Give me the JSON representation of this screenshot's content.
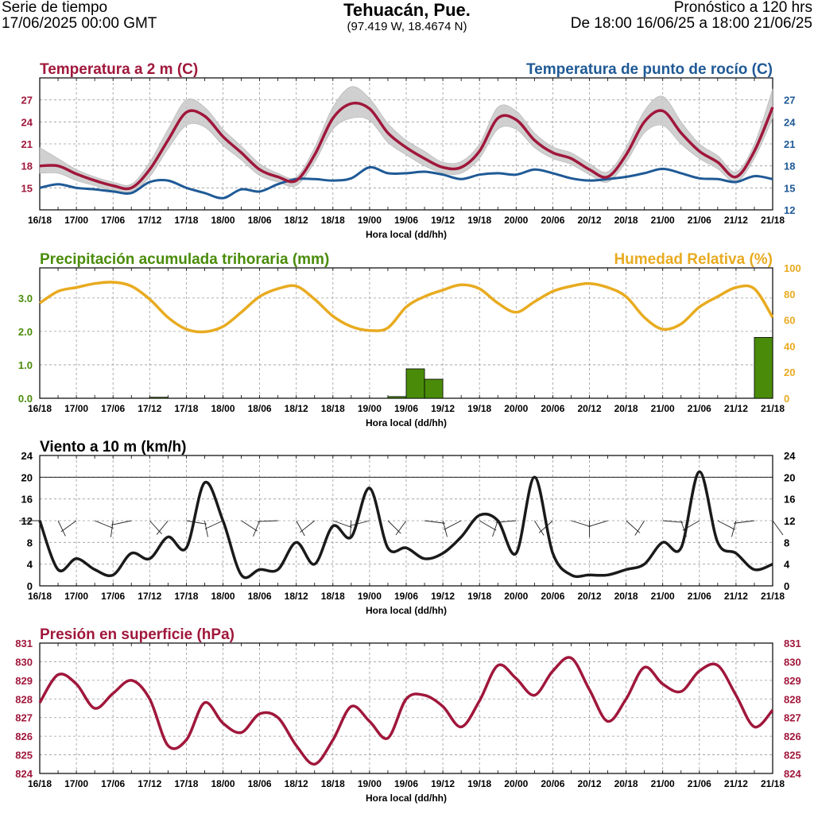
{
  "header": {
    "left_line1": "Serie de tiempo",
    "left_line2": "17/06/2025 00:00 GMT",
    "title": "Tehuacán, Pue.",
    "coords": "(97.419 W, 18.4674 N)",
    "right_line1": "Pronóstico a 120 hrs",
    "right_line2": "De 18:00 16/06/25 a 18:00 21/06/25"
  },
  "colors": {
    "temperature": "#a0173b",
    "dewpoint": "#1f5a96",
    "precip": "#4a8c0a",
    "humidity": "#e8ab20",
    "wind": "#1a1a1a",
    "pressure": "#a0173b",
    "spread": "#c8c8c8"
  },
  "chart_data": [
    {
      "id": "temp",
      "type": "line",
      "title": "Temperatura a 2 m (C)",
      "title_right": "Temperatura de punto de rocío (C)",
      "xlabel": "Hora local (dd/hh)",
      "x_tick_labels": [
        "16/18",
        "17/00",
        "17/06",
        "17/12",
        "17/18",
        "18/00",
        "18/06",
        "18/12",
        "18/18",
        "19/00",
        "19/06",
        "19/12",
        "19/18",
        "20/00",
        "20/06",
        "20/12",
        "20/18",
        "21/00",
        "21/06",
        "21/12",
        "21/18"
      ],
      "ylim": [
        12,
        30
      ],
      "y_ticks_left": [
        "15",
        "18",
        "21",
        "24",
        "27"
      ],
      "y_ticks_right": [
        "12",
        "15",
        "18",
        "21",
        "24",
        "27"
      ],
      "hours": [
        0,
        3,
        6,
        9,
        12,
        15,
        18,
        21,
        24,
        27,
        30,
        33,
        36,
        39,
        42,
        45,
        48,
        51,
        54,
        57,
        60,
        63,
        66,
        69,
        72,
        75,
        78,
        81,
        84,
        87,
        90,
        93,
        96,
        99,
        102,
        105,
        108,
        111,
        114,
        117,
        120
      ],
      "series": [
        {
          "name": "Temperatura a 2 m (C)",
          "values": [
            18.0,
            18.0,
            16.9,
            16.0,
            15.3,
            15.0,
            17.5,
            21.5,
            25.3,
            24.8,
            22.0,
            19.8,
            17.5,
            16.5,
            16.0,
            19.5,
            24.5,
            26.5,
            25.8,
            22.5,
            20.5,
            19.0,
            17.8,
            17.8,
            20.0,
            24.5,
            24.3,
            21.5,
            19.8,
            19.0,
            17.5,
            16.5,
            19.5,
            24.0,
            25.5,
            22.5,
            20.0,
            18.5,
            16.5,
            20.0,
            26.0
          ]
        },
        {
          "name": "Temperatura de punto de rocío (C)",
          "values": [
            15.0,
            15.5,
            15.0,
            14.8,
            14.5,
            14.3,
            15.8,
            16.0,
            15.0,
            14.3,
            13.6,
            14.8,
            14.5,
            15.5,
            16.2,
            16.2,
            16.0,
            16.3,
            17.8,
            17.0,
            17.0,
            17.2,
            16.8,
            16.2,
            16.8,
            17.0,
            16.8,
            17.5,
            17.0,
            16.3,
            16.0,
            16.2,
            16.5,
            17.0,
            17.6,
            17.0,
            16.3,
            16.2,
            15.8,
            16.6,
            16.2
          ]
        }
      ],
      "spread": {
        "upper": [
          20.5,
          19.0,
          17.5,
          16.5,
          15.8,
          15.5,
          18.5,
          23.0,
          27.0,
          26.0,
          23.0,
          20.7,
          18.3,
          17.0,
          16.5,
          20.5,
          26.0,
          28.8,
          27.2,
          23.8,
          21.5,
          20.0,
          18.5,
          18.6,
          21.0,
          26.0,
          25.5,
          22.5,
          20.6,
          19.8,
          18.3,
          17.2,
          20.5,
          25.5,
          27.5,
          24.0,
          21.0,
          19.4,
          17.2,
          21.0,
          28.5
        ],
        "lower": [
          17.0,
          17.0,
          16.0,
          15.3,
          14.6,
          14.4,
          16.5,
          20.3,
          23.5,
          23.3,
          20.8,
          18.8,
          16.7,
          15.8,
          15.3,
          18.5,
          23.0,
          24.5,
          24.2,
          21.2,
          19.5,
          18.0,
          17.0,
          17.0,
          19.0,
          23.0,
          23.0,
          20.5,
          19.0,
          18.2,
          16.8,
          15.8,
          18.5,
          22.5,
          23.5,
          21.0,
          19.0,
          17.6,
          15.8,
          19.0,
          24.5
        ]
      }
    },
    {
      "id": "precip",
      "type": "bar",
      "title": "Precipitación acumulada trihoraria (mm)",
      "title_right": "Humedad Relativa (%)",
      "xlabel": "Hora local (dd/hh)",
      "x_tick_labels": [
        "16/18",
        "17/00",
        "17/06",
        "17/12",
        "17/18",
        "18/00",
        "18/06",
        "18/12",
        "18/18",
        "19/00",
        "19/06",
        "19/12",
        "19/18",
        "20/00",
        "20/06",
        "20/12",
        "20/18",
        "21/00",
        "21/06",
        "21/12",
        "21/18"
      ],
      "ylim": [
        0,
        3.9
      ],
      "y_ticks_left": [
        "0.0",
        "1.0",
        "2.0",
        "3.0"
      ],
      "y2lim": [
        0,
        100
      ],
      "y_ticks_right": [
        "0",
        "20",
        "40",
        "60",
        "80",
        "100"
      ],
      "bars": [
        {
          "hour": 19.5,
          "value": 0.03
        },
        {
          "hour": 58.5,
          "value": 0.05
        },
        {
          "hour": 61.5,
          "value": 0.88
        },
        {
          "hour": 64.5,
          "value": 0.57
        },
        {
          "hour": 118.5,
          "value": 1.82
        }
      ],
      "humidity": {
        "name": "Humedad Relativa (%)",
        "hours": [
          0,
          3,
          6,
          9,
          12,
          15,
          18,
          21,
          24,
          27,
          30,
          33,
          36,
          39,
          42,
          45,
          48,
          51,
          54,
          57,
          60,
          63,
          66,
          69,
          72,
          75,
          78,
          81,
          84,
          87,
          90,
          93,
          96,
          99,
          102,
          105,
          108,
          111,
          114,
          117,
          120
        ],
        "values": [
          73,
          82,
          85,
          88,
          89,
          86,
          76,
          62,
          53,
          51,
          55,
          66,
          78,
          84,
          86,
          76,
          63,
          55,
          52,
          54,
          70,
          78,
          83,
          87,
          84,
          73,
          66,
          74,
          82,
          86,
          88,
          85,
          78,
          62,
          53,
          57,
          70,
          78,
          85,
          84,
          62
        ]
      }
    },
    {
      "id": "wind",
      "type": "line",
      "title": "Viento a 10 m (km/h)",
      "xlabel": "Hora local (dd/hh)",
      "x_tick_labels": [
        "16/18",
        "17/00",
        "17/06",
        "17/12",
        "17/18",
        "18/00",
        "18/06",
        "18/12",
        "18/18",
        "19/00",
        "19/06",
        "19/12",
        "19/18",
        "20/00",
        "20/06",
        "20/12",
        "20/18",
        "21/00",
        "21/06",
        "21/12",
        "21/18"
      ],
      "ylim": [
        0,
        24
      ],
      "y_ticks_left": [
        "0",
        "4",
        "8",
        "12",
        "16",
        "20",
        "24"
      ],
      "y_ticks_right": [
        "0",
        "4",
        "8",
        "12",
        "16",
        "20",
        "24"
      ],
      "hours": [
        0,
        3,
        6,
        9,
        12,
        15,
        18,
        21,
        24,
        27,
        30,
        33,
        36,
        39,
        42,
        45,
        48,
        51,
        54,
        57,
        60,
        63,
        66,
        69,
        72,
        75,
        78,
        81,
        84,
        87,
        90,
        93,
        96,
        99,
        102,
        105,
        108,
        111,
        114,
        117,
        120
      ],
      "series": [
        {
          "name": "Viento a 10 m (km/h)",
          "values": [
            12,
            3,
            5,
            3,
            2,
            6,
            5,
            9,
            7,
            19,
            12,
            2,
            3,
            3,
            8,
            4,
            11,
            9,
            18,
            7,
            7,
            5,
            6,
            9,
            13,
            12,
            6,
            20,
            6,
            2,
            2,
            2,
            3,
            4,
            8,
            7,
            21,
            8,
            6,
            3,
            4
          ]
        }
      ]
    },
    {
      "id": "pres",
      "type": "line",
      "title": "Presión en superficie (hPa)",
      "xlabel": "Hora local (dd/hh)",
      "x_tick_labels": [
        "16/18",
        "17/00",
        "17/06",
        "17/12",
        "17/18",
        "18/00",
        "18/06",
        "18/12",
        "18/18",
        "19/00",
        "19/06",
        "19/12",
        "19/18",
        "20/00",
        "20/06",
        "20/12",
        "20/18",
        "21/00",
        "21/06",
        "21/12",
        "21/18"
      ],
      "ylim": [
        824,
        831
      ],
      "y_ticks_left": [
        "824",
        "825",
        "826",
        "827",
        "828",
        "829",
        "830",
        "831"
      ],
      "y_ticks_right": [
        "824",
        "825",
        "826",
        "827",
        "828",
        "829",
        "830",
        "831"
      ],
      "hours": [
        0,
        3,
        6,
        9,
        12,
        15,
        18,
        21,
        24,
        27,
        30,
        33,
        36,
        39,
        42,
        45,
        48,
        51,
        54,
        57,
        60,
        63,
        66,
        69,
        72,
        75,
        78,
        81,
        84,
        87,
        90,
        93,
        96,
        99,
        102,
        105,
        108,
        111,
        114,
        117,
        120
      ],
      "series": [
        {
          "name": "Presión en superficie (hPa)",
          "values": [
            827.8,
            829.3,
            828.8,
            827.5,
            828.3,
            829.0,
            828.0,
            825.5,
            825.8,
            827.8,
            826.7,
            826.2,
            827.2,
            827.0,
            825.5,
            824.5,
            825.8,
            827.6,
            826.8,
            825.9,
            828.0,
            828.2,
            827.6,
            826.5,
            827.9,
            829.8,
            829.1,
            828.2,
            829.5,
            830.2,
            828.5,
            826.8,
            828.0,
            829.7,
            828.8,
            828.4,
            829.5,
            829.8,
            828.2,
            826.5,
            827.4
          ]
        }
      ]
    }
  ]
}
